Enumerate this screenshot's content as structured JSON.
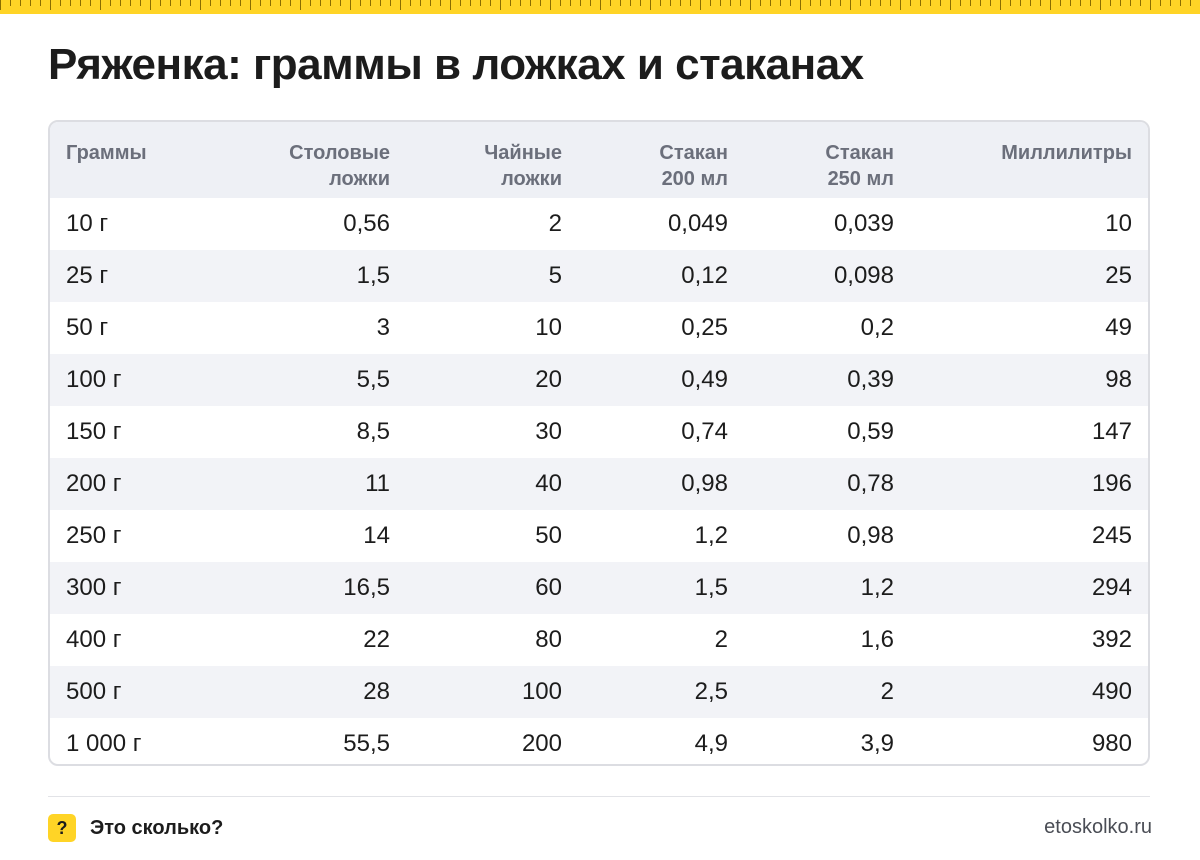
{
  "title": "Ряженка: граммы в ложках и стаканах",
  "table": {
    "headers": [
      [
        "Граммы",
        ""
      ],
      [
        "Столовые",
        "ложки"
      ],
      [
        "Чайные",
        "ложки"
      ],
      [
        "Стакан",
        "200 мл"
      ],
      [
        "Стакан",
        "250 мл"
      ],
      [
        "Миллилитры",
        ""
      ]
    ],
    "rows": [
      [
        "10 г",
        "0,56",
        "2",
        "0,049",
        "0,039",
        "10"
      ],
      [
        "25 г",
        "1,5",
        "5",
        "0,12",
        "0,098",
        "25"
      ],
      [
        "50 г",
        "3",
        "10",
        "0,25",
        "0,2",
        "49"
      ],
      [
        "100 г",
        "5,5",
        "20",
        "0,49",
        "0,39",
        "98"
      ],
      [
        "150 г",
        "8,5",
        "30",
        "0,74",
        "0,59",
        "147"
      ],
      [
        "200 г",
        "11",
        "40",
        "0,98",
        "0,78",
        "196"
      ],
      [
        "250 г",
        "14",
        "50",
        "1,2",
        "0,98",
        "245"
      ],
      [
        "300 г",
        "16,5",
        "60",
        "1,5",
        "1,2",
        "294"
      ],
      [
        "400 г",
        "22",
        "80",
        "2",
        "1,6",
        "392"
      ],
      [
        "500 г",
        "28",
        "100",
        "2,5",
        "2",
        "490"
      ],
      [
        "1 000 г",
        "55,5",
        "200",
        "4,9",
        "3,9",
        "980"
      ]
    ]
  },
  "footer": {
    "badge": "?",
    "badge_icon": "question-mark-icon",
    "brand": "Это сколько?",
    "site": "etoskolko.ru"
  },
  "colors": {
    "accent": "#ffd426",
    "header_bg": "#eef0f5",
    "stripe_bg": "#f2f3f7",
    "border": "#dcdde2"
  }
}
